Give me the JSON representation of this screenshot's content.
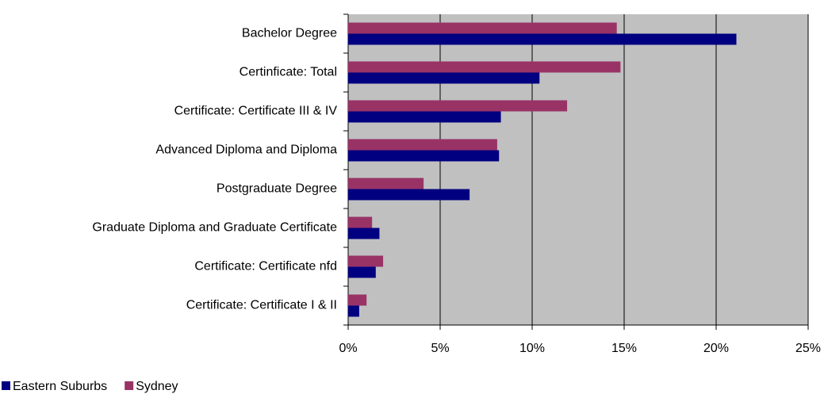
{
  "chart_data": {
    "type": "bar",
    "orientation": "horizontal",
    "categories": [
      "Bachelor Degree",
      "Certinficate: Total",
      "Certificate: Certificate III & IV",
      "Advanced Diploma and Diploma",
      "Postgraduate Degree",
      "Graduate Diploma and Graduate Certificate",
      "Certificate: Certificate nfd",
      "Certificate: Certificate I & II"
    ],
    "series": [
      {
        "name": "Eastern Suburbs",
        "color": "#000080",
        "values": [
          21.1,
          10.4,
          8.3,
          8.2,
          6.6,
          1.7,
          1.5,
          0.6
        ]
      },
      {
        "name": "Sydney",
        "color": "#993366",
        "values": [
          14.6,
          14.8,
          11.9,
          8.1,
          4.1,
          1.3,
          1.9,
          1.0
        ]
      }
    ],
    "xlim": [
      0,
      25
    ],
    "xticks": [
      {
        "value": 0,
        "label": "0%"
      },
      {
        "value": 5,
        "label": "5%"
      },
      {
        "value": 10,
        "label": "10%"
      },
      {
        "value": 15,
        "label": "15%"
      },
      {
        "value": 20,
        "label": "20%"
      },
      {
        "value": 25,
        "label": "25%"
      }
    ],
    "grid": true,
    "legend": "bottom-left",
    "plot_background": "#c0c0c0"
  }
}
